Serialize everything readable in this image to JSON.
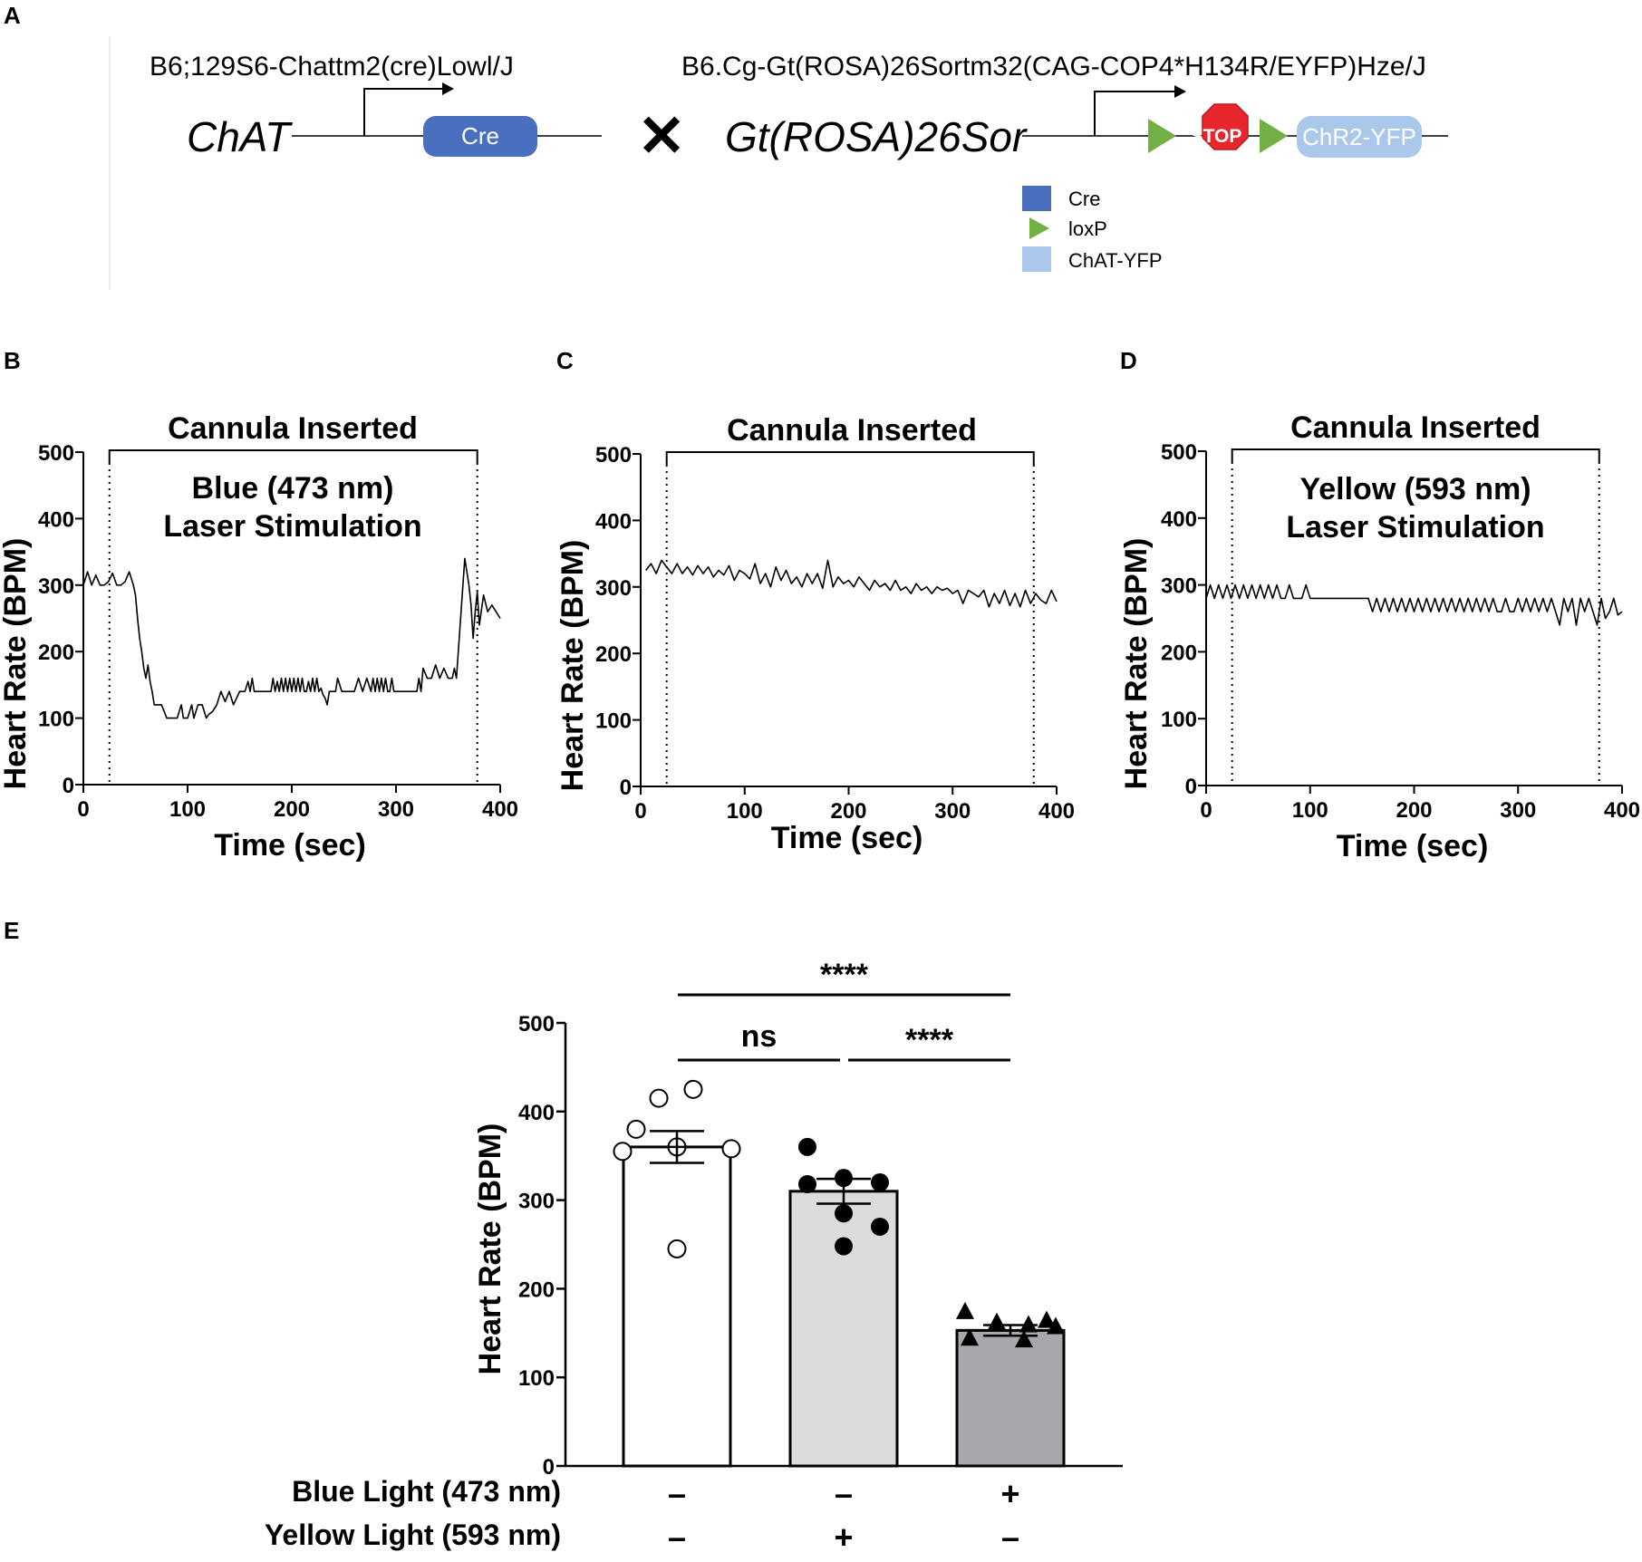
{
  "panels": {
    "A": "A",
    "B": "B",
    "C": "C",
    "D": "D",
    "E": "E"
  },
  "genetics": {
    "strain_left": "B6;129S6-Chattm2(cre)Lowl/J",
    "strain_right": "B6.Cg-Gt(ROSA)26Sortm32(CAG-COP4*H134R/EYFP)Hze/J",
    "gene_left": "ChAT",
    "gene_right": "Gt(ROSA)26Sor",
    "cross_symbol": "✕",
    "cre_label": "Cre",
    "stop_label": "STOP",
    "chr2_label": "ChR2-YFP",
    "legend": [
      {
        "label": "Cre",
        "color": "#4a6fbe"
      },
      {
        "label": "loxP",
        "color": "#72b043"
      },
      {
        "label": "ChAT-YFP",
        "color": "#a9c8ea"
      }
    ],
    "colors": {
      "cre": "#4a6fbe",
      "stop": "#e8262d",
      "loxp": "#72b043",
      "chr2": "#a9c8ea"
    }
  },
  "chart_data": [
    {
      "id": "B",
      "type": "line",
      "title": "Cannula  Inserted",
      "annotation": [
        "Blue (473 nm)",
        "Laser  Stimulation"
      ],
      "xlabel": "Time (sec)",
      "ylabel": "Heart  Rate (BPM)",
      "xlim": [
        0,
        400
      ],
      "ylim": [
        0,
        500
      ],
      "xticks": [
        "0",
        "100",
        "200",
        "300",
        "400"
      ],
      "yticks": [
        "0",
        "100",
        "200",
        "300",
        "400",
        "500"
      ],
      "stim_window": [
        25,
        378
      ],
      "x": [
        0,
        4,
        8,
        12,
        16,
        20,
        24,
        28,
        32,
        36,
        40,
        44,
        48,
        50,
        52,
        54,
        56,
        58,
        60,
        62,
        64,
        66,
        68,
        70,
        75,
        80,
        85,
        90,
        94,
        96,
        100,
        104,
        106,
        110,
        114,
        118,
        120,
        124,
        128,
        132,
        136,
        140,
        144,
        150,
        155,
        158,
        160,
        162,
        164,
        168,
        172,
        176,
        180,
        182,
        184,
        186,
        188,
        190,
        192,
        194,
        196,
        198,
        200,
        202,
        204,
        206,
        208,
        210,
        212,
        214,
        216,
        218,
        220,
        222,
        224,
        226,
        228,
        230,
        232,
        234,
        236,
        238,
        240,
        242,
        244,
        248,
        250,
        255,
        260,
        264,
        268,
        272,
        276,
        278,
        280,
        282,
        284,
        286,
        288,
        290,
        292,
        294,
        296,
        298,
        300,
        305,
        310,
        315,
        320,
        322,
        324,
        326,
        330,
        334,
        338,
        342,
        346,
        350,
        354,
        356,
        358,
        362,
        366,
        370,
        372,
        374,
        376,
        378,
        380,
        384,
        388,
        392,
        396,
        400
      ],
      "y": [
        300,
        320,
        300,
        315,
        300,
        300,
        305,
        318,
        300,
        300,
        305,
        320,
        300,
        285,
        250,
        220,
        200,
        175,
        160,
        180,
        155,
        140,
        120,
        120,
        120,
        100,
        100,
        100,
        120,
        100,
        100,
        120,
        100,
        120,
        120,
        100,
        105,
        110,
        120,
        140,
        125,
        140,
        120,
        140,
        140,
        155,
        140,
        160,
        140,
        140,
        140,
        140,
        140,
        160,
        140,
        155,
        140,
        160,
        140,
        160,
        140,
        160,
        140,
        160,
        140,
        160,
        140,
        160,
        140,
        140,
        155,
        140,
        160,
        140,
        160,
        140,
        145,
        135,
        130,
        120,
        140,
        140,
        140,
        140,
        160,
        140,
        140,
        140,
        140,
        160,
        140,
        160,
        140,
        160,
        140,
        160,
        140,
        160,
        140,
        160,
        140,
        140,
        160,
        140,
        140,
        140,
        140,
        140,
        140,
        160,
        140,
        175,
        160,
        160,
        180,
        160,
        175,
        160,
        160,
        175,
        160,
        250,
        340,
        300,
        270,
        220,
        260,
        290,
        240,
        285,
        260,
        270,
        260,
        250
      ]
    },
    {
      "id": "C",
      "type": "line",
      "title": "Cannula  Inserted",
      "annotation": [],
      "xlabel": "Time (sec)",
      "ylabel": "Heart  Rate (BPM)",
      "xlim": [
        0,
        400
      ],
      "ylim": [
        0,
        500
      ],
      "xticks": [
        "0",
        "100",
        "200",
        "300",
        "400"
      ],
      "yticks": [
        "0",
        "100",
        "200",
        "300",
        "400",
        "500"
      ],
      "stim_window": [
        25,
        378
      ],
      "x": [
        5,
        10,
        15,
        20,
        25,
        30,
        35,
        40,
        45,
        50,
        55,
        60,
        65,
        70,
        75,
        80,
        85,
        90,
        95,
        100,
        105,
        110,
        115,
        120,
        125,
        130,
        135,
        140,
        145,
        150,
        155,
        160,
        165,
        170,
        175,
        180,
        185,
        190,
        195,
        200,
        205,
        210,
        215,
        220,
        225,
        230,
        235,
        240,
        245,
        250,
        255,
        260,
        265,
        270,
        275,
        280,
        285,
        290,
        295,
        300,
        305,
        310,
        315,
        320,
        325,
        330,
        335,
        340,
        345,
        350,
        355,
        360,
        365,
        370,
        375,
        380,
        385,
        390,
        395,
        400
      ],
      "y": [
        325,
        335,
        320,
        340,
        330,
        320,
        335,
        320,
        330,
        318,
        332,
        320,
        330,
        315,
        325,
        318,
        332,
        310,
        325,
        320,
        312,
        335,
        305,
        320,
        300,
        330,
        310,
        325,
        305,
        315,
        300,
        320,
        305,
        320,
        298,
        340,
        300,
        315,
        305,
        310,
        300,
        315,
        305,
        295,
        310,
        300,
        305,
        295,
        310,
        295,
        300,
        290,
        305,
        295,
        300,
        290,
        300,
        295,
        298,
        290,
        295,
        275,
        295,
        290,
        285,
        295,
        270,
        290,
        275,
        295,
        272,
        290,
        270,
        295,
        275,
        290,
        280,
        275,
        295,
        278
      ]
    },
    {
      "id": "D",
      "type": "line",
      "title": "Cannula  Inserted",
      "annotation": [
        "Yellow (593 nm)",
        "Laser  Stimulation"
      ],
      "xlabel": "Time (sec)",
      "ylabel": "Heart  Rate (BPM)",
      "xlim": [
        0,
        400
      ],
      "ylim": [
        0,
        500
      ],
      "xticks": [
        "0",
        "100",
        "200",
        "300",
        "400"
      ],
      "yticks": [
        "0",
        "100",
        "200",
        "300",
        "400",
        "500"
      ],
      "stim_window": [
        25,
        378
      ],
      "x": [
        0,
        4,
        8,
        12,
        16,
        20,
        24,
        28,
        32,
        36,
        40,
        44,
        48,
        52,
        56,
        60,
        64,
        68,
        72,
        76,
        80,
        84,
        88,
        92,
        96,
        100,
        110,
        120,
        130,
        140,
        150,
        156,
        160,
        164,
        168,
        172,
        176,
        180,
        184,
        188,
        192,
        196,
        200,
        204,
        208,
        212,
        216,
        220,
        224,
        228,
        232,
        236,
        240,
        244,
        248,
        252,
        256,
        260,
        264,
        268,
        272,
        276,
        280,
        284,
        288,
        292,
        296,
        300,
        304,
        308,
        312,
        316,
        320,
        324,
        328,
        332,
        336,
        340,
        344,
        348,
        352,
        356,
        360,
        364,
        368,
        372,
        376,
        380,
        384,
        388,
        392,
        396,
        400
      ],
      "y": [
        280,
        300,
        280,
        300,
        280,
        300,
        280,
        300,
        280,
        300,
        280,
        300,
        280,
        300,
        280,
        300,
        280,
        300,
        280,
        280,
        300,
        280,
        280,
        280,
        300,
        280,
        280,
        280,
        280,
        280,
        280,
        280,
        260,
        280,
        260,
        280,
        260,
        280,
        260,
        280,
        260,
        280,
        260,
        280,
        260,
        280,
        260,
        280,
        260,
        280,
        260,
        280,
        260,
        280,
        260,
        280,
        260,
        280,
        260,
        280,
        260,
        280,
        260,
        260,
        280,
        260,
        260,
        280,
        260,
        280,
        260,
        280,
        260,
        280,
        260,
        280,
        260,
        240,
        280,
        260,
        280,
        240,
        280,
        260,
        280,
        260,
        240,
        280,
        250,
        260,
        280,
        255,
        260
      ]
    },
    {
      "id": "E",
      "type": "bar",
      "ylabel": "Heart  Rate (BPM)",
      "ylim": [
        0,
        500
      ],
      "yticks": [
        "0",
        "100",
        "200",
        "300",
        "400",
        "500"
      ],
      "categories": [
        "blue-off-yellow-off",
        "blue-off-yellow-on",
        "blue-on-yellow-off"
      ],
      "values": [
        360,
        310,
        153
      ],
      "sem": [
        18,
        14,
        6
      ],
      "fills": [
        "#ffffff",
        "#dcdcdc",
        "#a6a8ab"
      ],
      "markers": [
        "open-circle",
        "filled-circle",
        "filled-triangle"
      ],
      "points": [
        [
          415,
          425,
          380,
          360,
          358,
          355,
          245
        ],
        [
          360,
          325,
          320,
          318,
          285,
          270,
          248
        ],
        [
          175,
          165,
          163,
          160,
          158,
          145,
          143
        ]
      ],
      "significance": [
        {
          "label": "****",
          "from": 0,
          "to": 2
        },
        {
          "label": "ns",
          "from": 0,
          "to": 1
        },
        {
          "label": "****",
          "from": 1,
          "to": 2
        }
      ],
      "conditions": [
        {
          "label": "Blue Light  (473 nm)",
          "signs": [
            "–",
            "–",
            "+"
          ]
        },
        {
          "label": "Yellow Light  (593 nm)",
          "signs": [
            "–",
            "+",
            "–"
          ]
        }
      ]
    }
  ]
}
